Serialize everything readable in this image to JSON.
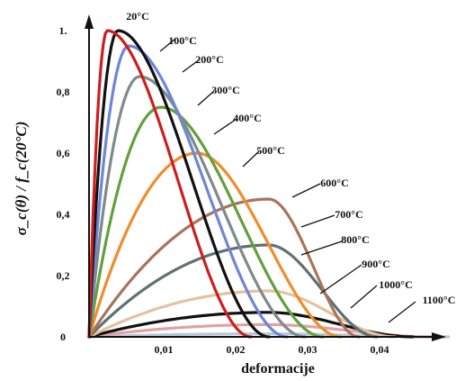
{
  "chart_data": {
    "type": "line",
    "xlabel": "deformacije",
    "ylabel": "σ_c(θ) / f_c(20°C)",
    "xlim": [
      0,
      0.047
    ],
    "ylim": [
      0,
      1.03
    ],
    "x_ticks": [
      "0,01",
      "0,02",
      "0,03",
      "0,04"
    ],
    "y_ticks": [
      "0",
      "0,2",
      "0,4",
      "0,6",
      "0,8",
      "1."
    ],
    "grid": false,
    "series": [
      {
        "name": "20°C",
        "color": "#cc1f1f",
        "peak_x": 0.0025,
        "peak_y": 1.0,
        "end_x": 0.0225
      },
      {
        "name": "100°C",
        "color": "#111111",
        "peak_x": 0.004,
        "peak_y": 1.0,
        "end_x": 0.025
      },
      {
        "name": "200°C",
        "color": "#6f86d6",
        "peak_x": 0.0055,
        "peak_y": 0.95,
        "end_x": 0.0275
      },
      {
        "name": "300°C",
        "color": "#7f8a8c",
        "peak_x": 0.007,
        "peak_y": 0.85,
        "end_x": 0.03
      },
      {
        "name": "400°C",
        "color": "#62a03d",
        "peak_x": 0.01,
        "peak_y": 0.75,
        "end_x": 0.0325
      },
      {
        "name": "500°C",
        "color": "#f08c2a",
        "peak_x": 0.015,
        "peak_y": 0.6,
        "end_x": 0.035
      },
      {
        "name": "600°C",
        "color": "#a8745a",
        "peak_x": 0.025,
        "peak_y": 0.45,
        "end_x": 0.0375
      },
      {
        "name": "700°C",
        "color": "#5f7172",
        "peak_x": 0.025,
        "peak_y": 0.3,
        "end_x": 0.04
      },
      {
        "name": "800°C",
        "color": "#e5c29f",
        "peak_x": 0.025,
        "peak_y": 0.15,
        "end_x": 0.0425
      },
      {
        "name": "900°C",
        "color": "#111111",
        "peak_x": 0.025,
        "peak_y": 0.08,
        "end_x": 0.045
      },
      {
        "name": "1000°C",
        "color": "#e2a2a2",
        "peak_x": 0.025,
        "peak_y": 0.04,
        "end_x": 0.0475
      },
      {
        "name": "1100°C",
        "color": "#b8c8d8",
        "peak_x": 0.025,
        "peak_y": 0.01,
        "end_x": 0.05
      }
    ]
  }
}
